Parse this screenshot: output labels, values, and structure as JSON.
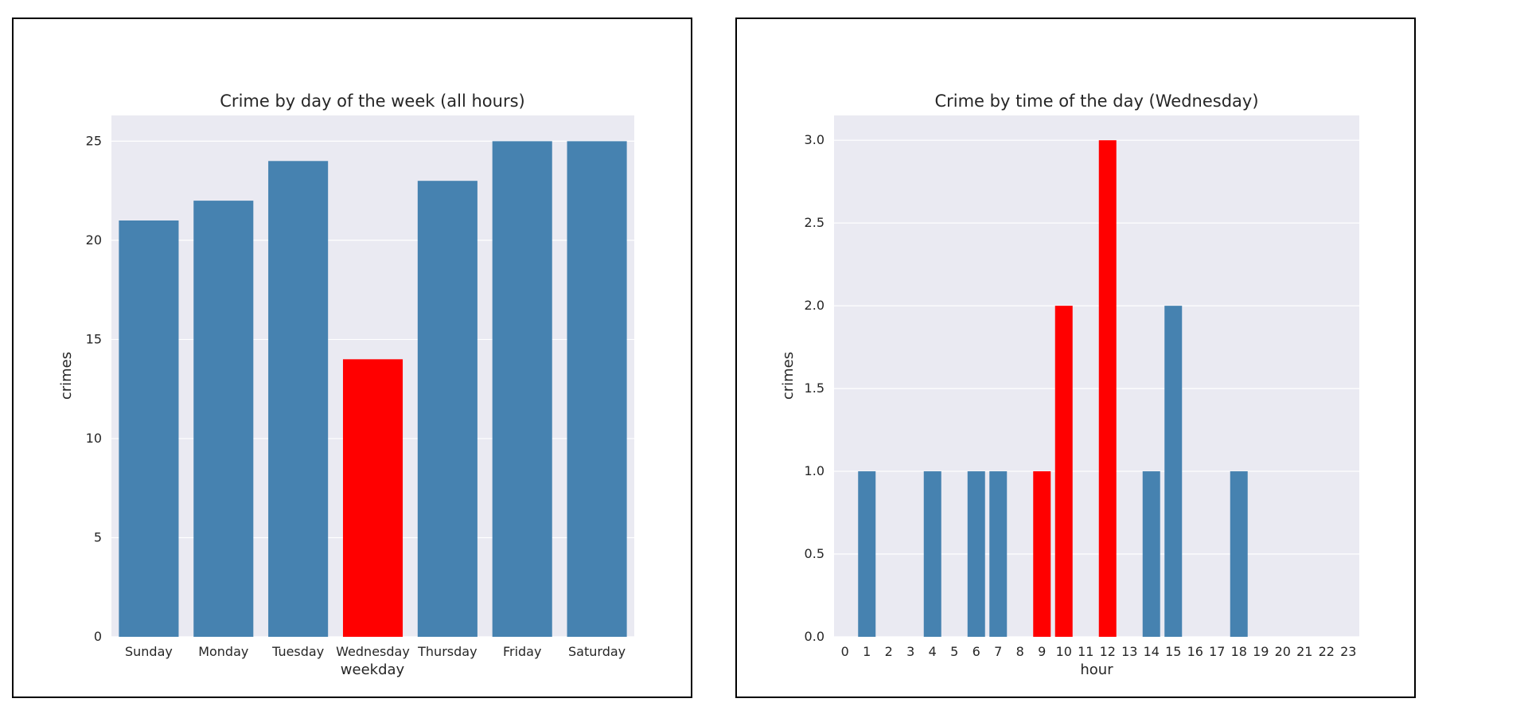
{
  "chart_data": [
    {
      "type": "bar",
      "title": "Crime by day of the week (all hours)",
      "xlabel": "weekday",
      "ylabel": "crimes",
      "categories": [
        "Sunday",
        "Monday",
        "Tuesday",
        "Wednesday",
        "Thursday",
        "Friday",
        "Saturday"
      ],
      "values": [
        21,
        22,
        24,
        14,
        23,
        25,
        25
      ],
      "highlight": [
        false,
        false,
        false,
        true,
        false,
        false,
        false
      ],
      "ylim": [
        0,
        26.3
      ],
      "yticks": [
        0,
        5,
        10,
        15,
        20,
        25
      ],
      "ytick_labels": [
        "0",
        "5",
        "10",
        "15",
        "20",
        "25"
      ],
      "grid": true,
      "colors": {
        "default": "#4682b0",
        "highlight": "#ff0000",
        "background": "#eaeaf2",
        "grid": "#ffffff"
      }
    },
    {
      "type": "bar",
      "title": "Crime by time of the day (Wednesday)",
      "xlabel": "hour",
      "ylabel": "crimes",
      "categories": [
        "0",
        "1",
        "2",
        "3",
        "4",
        "5",
        "6",
        "7",
        "8",
        "9",
        "10",
        "11",
        "12",
        "13",
        "14",
        "15",
        "16",
        "17",
        "18",
        "19",
        "20",
        "21",
        "22",
        "23"
      ],
      "values": [
        0,
        1,
        0,
        0,
        1,
        0,
        1,
        1,
        0,
        1,
        2,
        0,
        3,
        0,
        1,
        2,
        0,
        0,
        1,
        0,
        0,
        0,
        0,
        0
      ],
      "highlight": [
        false,
        false,
        false,
        false,
        false,
        false,
        false,
        false,
        false,
        true,
        true,
        false,
        true,
        false,
        false,
        false,
        false,
        false,
        false,
        false,
        false,
        false,
        false,
        false
      ],
      "ylim": [
        0,
        3.15
      ],
      "yticks": [
        0,
        0.5,
        1.0,
        1.5,
        2.0,
        2.5,
        3.0
      ],
      "ytick_labels": [
        "0.0",
        "0.5",
        "1.0",
        "1.5",
        "2.0",
        "2.5",
        "3.0"
      ],
      "grid": true,
      "colors": {
        "default": "#4682b0",
        "highlight": "#ff0000",
        "background": "#eaeaf2",
        "grid": "#ffffff"
      }
    }
  ]
}
